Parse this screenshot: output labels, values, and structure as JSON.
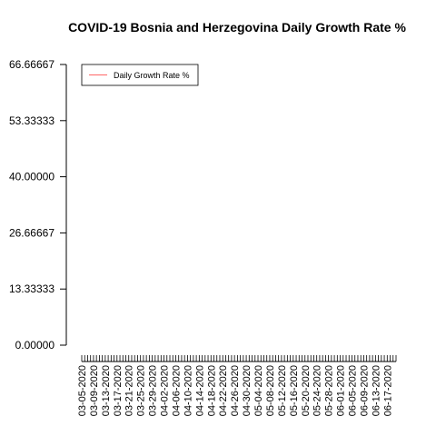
{
  "chart_data": {
    "type": "line",
    "title": "COVID-19 Bosnia and Herzegovina Daily Growth Rate %",
    "xlabel": "",
    "ylabel": "",
    "ylim": [
      0,
      66.66667
    ],
    "y_ticks": [
      "0.00000",
      "13.33333",
      "26.66667",
      "40.00000",
      "53.33333",
      "66.66667"
    ],
    "x_start": "03-05-2020",
    "x_end": "06-20-2020",
    "x_tick_labels": [
      "03-05-2020",
      "03-09-2020",
      "03-13-2020",
      "03-17-2020",
      "03-21-2020",
      "03-25-2020",
      "03-29-2020",
      "04-02-2020",
      "04-06-2020",
      "04-10-2020",
      "04-14-2020",
      "04-18-2020",
      "04-22-2020",
      "04-26-2020",
      "04-30-2020",
      "05-04-2020",
      "05-08-2020",
      "05-12-2020",
      "05-16-2020",
      "05-20-2020",
      "05-24-2020",
      "05-28-2020",
      "06-01-2020",
      "06-05-2020",
      "06-09-2020",
      "06-13-2020",
      "06-17-2020"
    ],
    "series": [
      {
        "name": "Daily Growth Rate %",
        "color": "#ff6666",
        "values": []
      }
    ],
    "legend_position": "top-left",
    "grid": false
  }
}
